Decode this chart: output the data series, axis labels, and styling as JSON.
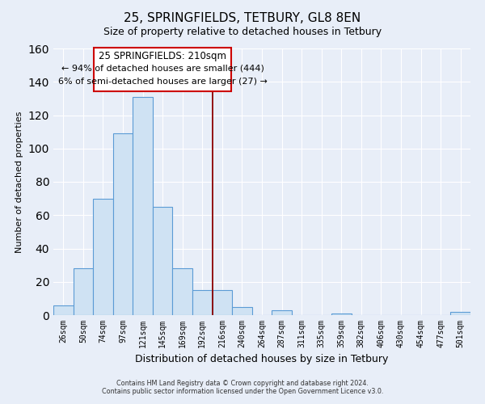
{
  "title": "25, SPRINGFIELDS, TETBURY, GL8 8EN",
  "subtitle": "Size of property relative to detached houses in Tetbury",
  "xlabel": "Distribution of detached houses by size in Tetbury",
  "ylabel": "Number of detached properties",
  "bar_labels": [
    "26sqm",
    "50sqm",
    "74sqm",
    "97sqm",
    "121sqm",
    "145sqm",
    "169sqm",
    "192sqm",
    "216sqm",
    "240sqm",
    "264sqm",
    "287sqm",
    "311sqm",
    "335sqm",
    "359sqm",
    "382sqm",
    "406sqm",
    "430sqm",
    "454sqm",
    "477sqm",
    "501sqm"
  ],
  "bar_values": [
    6,
    28,
    70,
    109,
    131,
    65,
    28,
    15,
    15,
    5,
    0,
    3,
    0,
    0,
    1,
    0,
    0,
    0,
    0,
    0,
    2
  ],
  "bar_color_face": "#cfe2f3",
  "bar_color_edge": "#5b9bd5",
  "ylim": [
    0,
    160
  ],
  "yticks": [
    0,
    20,
    40,
    60,
    80,
    100,
    120,
    140,
    160
  ],
  "vline_color": "#8b0000",
  "annotation_title": "25 SPRINGFIELDS: 210sqm",
  "annotation_line1": "← 94% of detached houses are smaller (444)",
  "annotation_line2": "6% of semi-detached houses are larger (27) →",
  "annotation_box_color": "#ffffff",
  "annotation_box_edge": "#cc0000",
  "footer1": "Contains HM Land Registry data © Crown copyright and database right 2024.",
  "footer2": "Contains public sector information licensed under the Open Government Licence v3.0.",
  "bg_color": "#e8eef8",
  "plot_bg_color": "#e8eef8",
  "grid_color": "#ffffff",
  "title_fontsize": 11,
  "subtitle_fontsize": 9,
  "ylabel_fontsize": 8,
  "xlabel_fontsize": 9
}
